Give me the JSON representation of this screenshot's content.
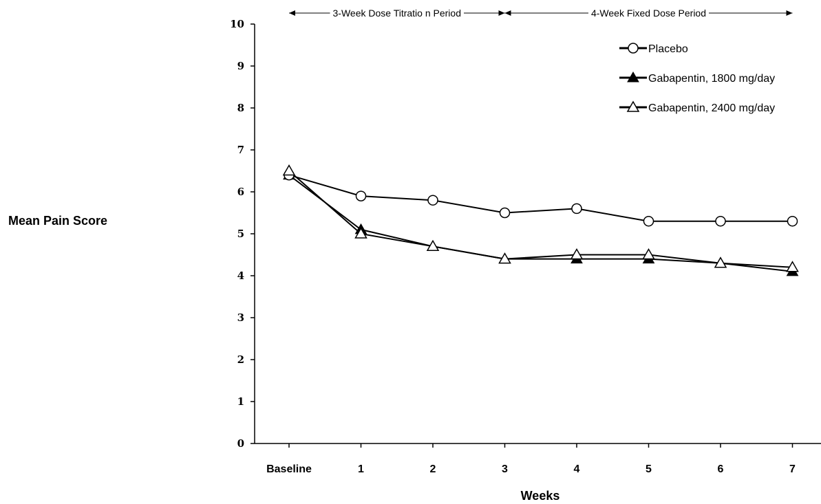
{
  "chart_data": {
    "type": "line",
    "ylabel": "Mean Pain Score",
    "xlabel": "Weeks",
    "ylim": [
      0,
      10
    ],
    "yticks": [
      "0",
      "1",
      "2",
      "3",
      "4",
      "5",
      "6",
      "7",
      "8",
      "9",
      "10"
    ],
    "categories": [
      "Baseline",
      "1",
      "2",
      "3",
      "4",
      "5",
      "6",
      "7"
    ],
    "periods": [
      {
        "label": "3-Week Dose Titratio  n Period",
        "from": "Baseline",
        "to": "3"
      },
      {
        "label": "4-Week Fixed Dose Period",
        "from": "3",
        "to": "7"
      }
    ],
    "legend_position": "top-right",
    "series": [
      {
        "name": "Placebo",
        "marker": "open-circle",
        "values": [
          6.4,
          5.9,
          5.8,
          5.5,
          5.6,
          5.3,
          5.3,
          5.3
        ]
      },
      {
        "name": "Gabapentin, 1800 mg/day",
        "marker": "filled-triangle",
        "values": [
          6.4,
          5.1,
          4.7,
          4.4,
          4.4,
          4.4,
          4.3,
          4.1
        ]
      },
      {
        "name": "Gabapentin, 2400 mg/day",
        "marker": "open-triangle",
        "values": [
          6.5,
          5.0,
          4.7,
          4.4,
          4.5,
          4.5,
          4.3,
          4.2
        ]
      }
    ],
    "colors": {
      "line": "#000000",
      "background": "#ffffff"
    }
  }
}
